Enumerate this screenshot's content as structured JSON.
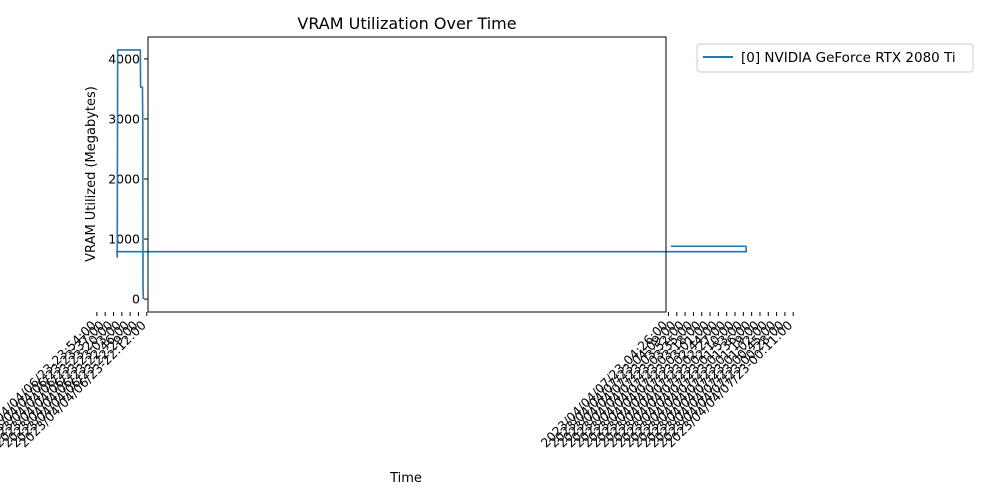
{
  "chart_data": {
    "type": "line",
    "title": "VRAM Utilization Over Time",
    "xlabel": "Time",
    "ylabel": "VRAM Utilized (Megabytes)",
    "yticks": [
      0,
      1000,
      2000,
      3000,
      4000
    ],
    "ylim": [
      -215,
      4365
    ],
    "xlim": [
      "2023/04/04/06/23-22:09:30",
      "2023/04/04/07/23-04:31:00"
    ],
    "xtick_labels": [
      "2023/04/04/06/23-22:12:00",
      "2023/04/04/06/23-22:29:00",
      "2023/04/04/06/23-22:46:00",
      "2023/04/04/06/23-23:03:00",
      "2023/04/04/06/23-23:20:00",
      "2023/04/04/06/23-23:37:00",
      "2023/04/04/06/23-23:54:00",
      "2023/04/04/07/23-00:11:00",
      "2023/04/04/07/23-00:28:00",
      "2023/04/04/07/23-00:45:00",
      "2023/04/04/07/23-01:02:00",
      "2023/04/04/07/23-01:19:00",
      "2023/04/04/07/23-01:36:00",
      "2023/04/04/07/23-01:53:00",
      "2023/04/04/07/23-02:10:00",
      "2023/04/04/07/23-02:27:00",
      "2023/04/04/07/23-02:44:00",
      "2023/04/04/07/23-03:01:00",
      "2023/04/04/07/23-03:18:00",
      "2023/04/04/07/23-03:35:00",
      "2023/04/04/07/23-03:52:00",
      "2023/04/04/07/23-04:09:00",
      "2023/04/04/07/23-04:26:00"
    ],
    "minor_ticks_per_major": 4,
    "grid": false,
    "legend_position": "outside-top-right",
    "series": [
      {
        "name": "[0] NVIDIA GeForce RTX 2080 Ti",
        "color": "#1f77b4",
        "x": [
          "2023/04/04/06/23-22:19:00",
          "2023/04/04/06/23-22:19:40",
          "2023/04/04/06/23-22:20:10",
          "2023/04/04/06/23-22:20:50",
          "2023/04/04/06/23-22:24:00",
          "2023/04/04/06/23-22:24:40",
          "2023/04/04/06/23-22:25:10",
          "2023/04/04/06/23-23:11:30",
          "2023/04/04/06/23-23:12:20",
          "2023/04/04/06/23-23:12:50",
          "2023/04/04/06/23-23:13:40",
          "2023/04/04/07/23-01:47:00",
          "2023/04/04/07/23-01:47:30",
          "2023/04/04/07/23-04:21:00"
        ],
        "y": [
          0,
          200,
          2900,
          3530,
          3530,
          3530,
          4150,
          4150,
          700,
          790,
          790,
          790,
          880,
          880
        ]
      }
    ]
  }
}
